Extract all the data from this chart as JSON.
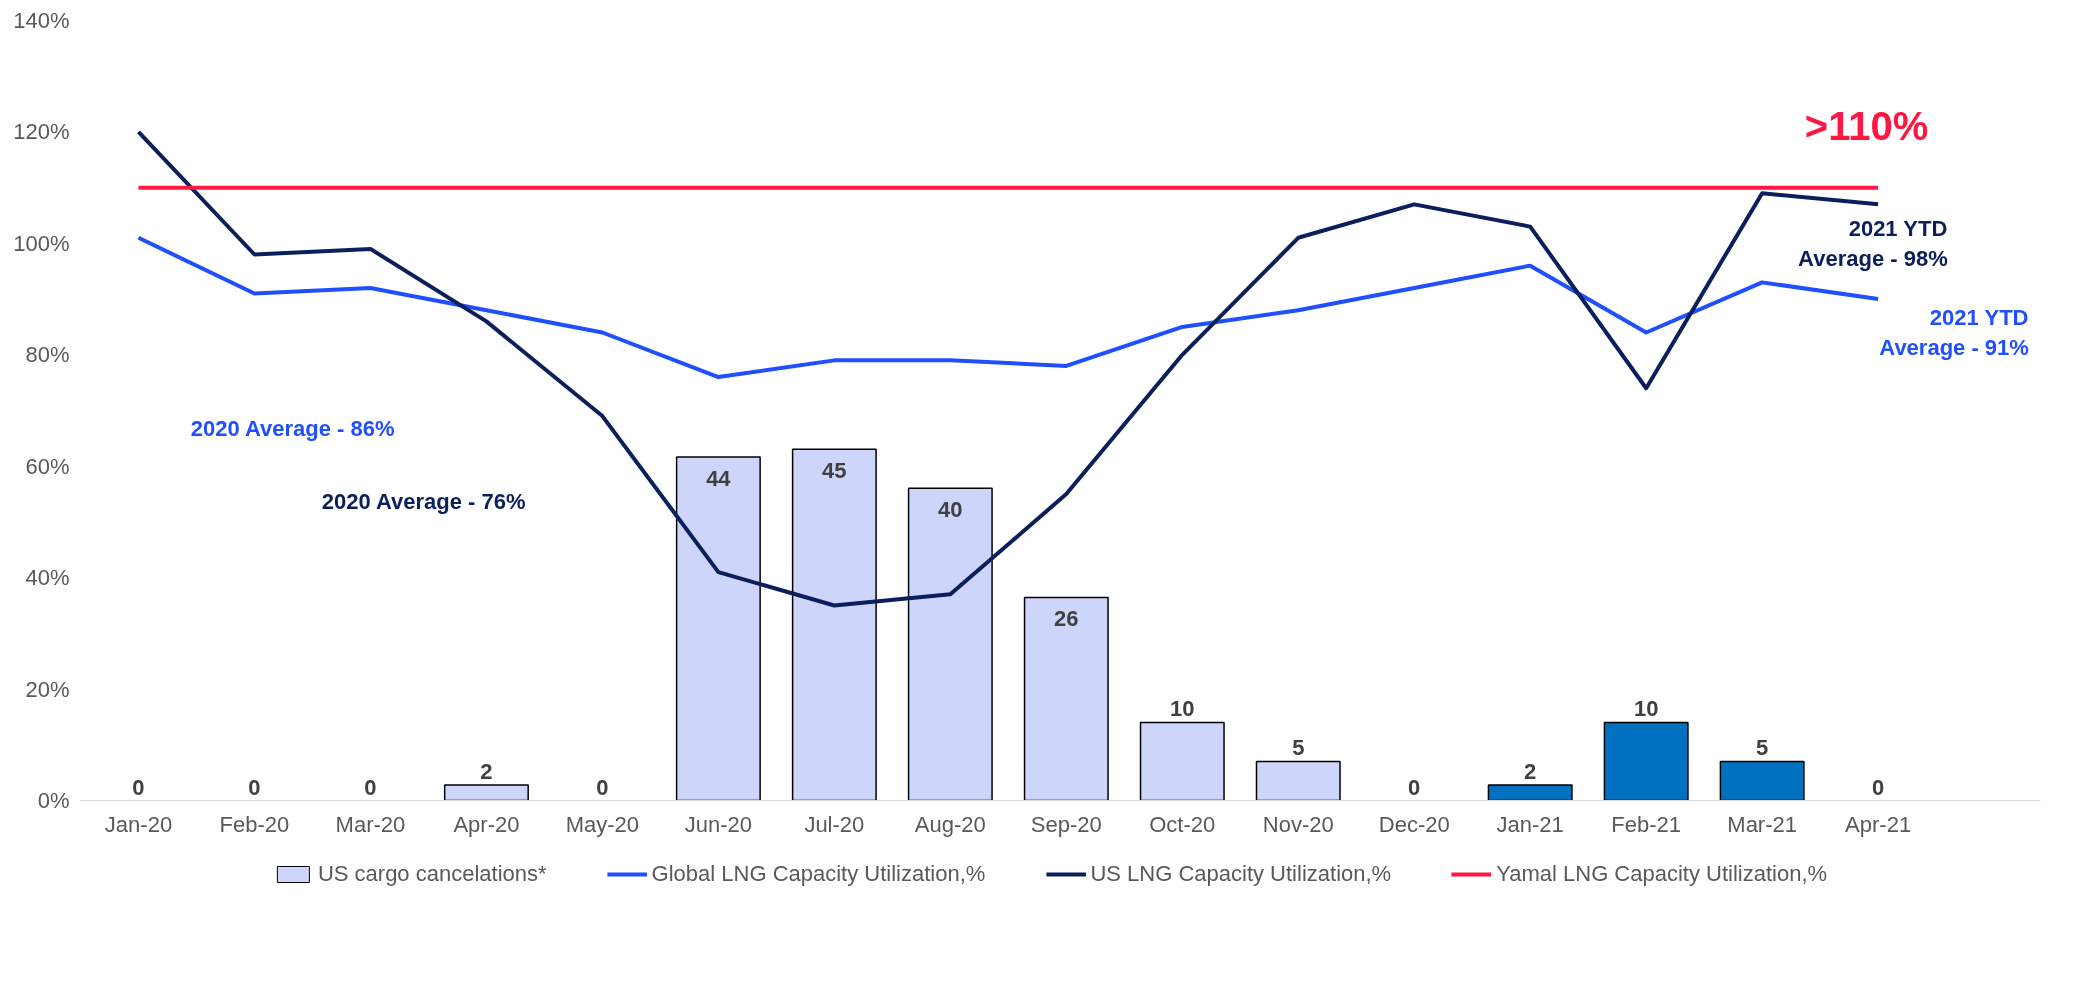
{
  "chart_data": {
    "type": "bar",
    "categories": [
      "Jan-20",
      "Feb-20",
      "Mar-20",
      "Apr-20",
      "May-20",
      "Jun-20",
      "Jul-20",
      "Aug-20",
      "Sep-20",
      "Oct-20",
      "Nov-20",
      "Dec-20",
      "Jan-21",
      "Feb-21",
      "Mar-21",
      "Apr-21"
    ],
    "series": [
      {
        "name": "US cargo cancelations*",
        "axis": "y2",
        "color": "#cdd6fa",
        "colors": [
          "#cdd6fa",
          "#cdd6fa",
          "#cdd6fa",
          "#cdd6fa",
          "#cdd6fa",
          "#cdd6fa",
          "#cdd6fa",
          "#cdd6fa",
          "#cdd6fa",
          "#cdd6fa",
          "#cdd6fa",
          "#cdd6fa",
          "#0070c0",
          "#0070c0",
          "#0070c0",
          "#0070c0"
        ],
        "values": [
          0,
          0,
          0,
          2,
          0,
          44,
          45,
          40,
          26,
          10,
          5,
          0,
          2,
          10,
          5,
          0
        ],
        "value_labels": [
          "0",
          "0",
          "0",
          "2",
          "0",
          "44",
          "45",
          "40",
          "26",
          "10",
          "5",
          "0",
          "2",
          "10",
          "5",
          "0"
        ]
      },
      {
        "name": "Global LNG Capacity Utilization,%",
        "type": "line",
        "color": "#1f4fff",
        "values": [
          101,
          91,
          92,
          88,
          84,
          76,
          79,
          79,
          78,
          85,
          88,
          92,
          96,
          84,
          93,
          90
        ]
      },
      {
        "name": "US LNG Capacity Utilization,%",
        "type": "line",
        "color": "#0b1f5c",
        "values": [
          120,
          98,
          99,
          86,
          69,
          41,
          35,
          37,
          55,
          80,
          101,
          107,
          103,
          74,
          109,
          107
        ]
      },
      {
        "name": "Yamal LNG Capacity Utilization,%",
        "type": "line",
        "color": "#ff1744",
        "values": [
          110,
          110,
          110,
          110,
          110,
          110,
          110,
          110,
          110,
          110,
          110,
          110,
          110,
          110,
          110,
          110
        ]
      }
    ],
    "ylim": [
      0,
      140
    ],
    "yticks": [
      {
        "value": 0,
        "label": "0%"
      },
      {
        "value": 20,
        "label": "20%"
      },
      {
        "value": 40,
        "label": "40%"
      },
      {
        "value": 60,
        "label": "60%"
      },
      {
        "value": 80,
        "label": "80%"
      },
      {
        "value": 100,
        "label": "100%"
      },
      {
        "value": 120,
        "label": "120%"
      },
      {
        "value": 140,
        "label": "140%"
      }
    ],
    "annotations": [
      "2020 Average - 86%",
      "2020 Average - 76%",
      ">110%",
      "2021 YTD\nAverage - 98%",
      "2021 YTD\nAverage - 91%"
    ],
    "grid": false,
    "legend": "bottom",
    "line_style": "solid",
    "marker": "none"
  }
}
